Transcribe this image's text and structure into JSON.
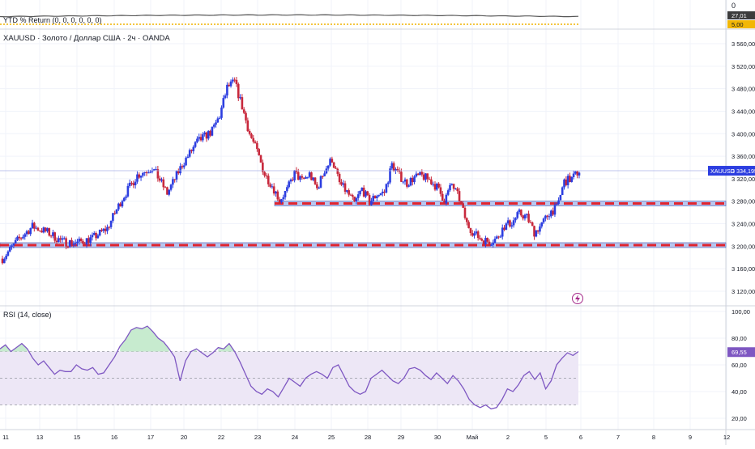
{
  "ytd_pane": {
    "title": "YTD % Return (0, 0, 0, 0, 0, 0)",
    "axis_top": "0",
    "value_badge": "27,01",
    "value_badge_2": "5,00",
    "line_color": "#555555",
    "dotted_color": "#f0b400"
  },
  "main_pane": {
    "title": "XAUUSD · Золото / Доллар США · 2ч · OANDA",
    "price_badge_symbol": "XAUUSD",
    "price_badge_value": "3 334,195",
    "bull_color": "#2c3ee0",
    "bear_color": "#c8283c",
    "level_1": 3276,
    "level_2": 3202,
    "level_fill": "#b9c6ee",
    "level_dash": "#e0242f",
    "flash_icon": "lightning-icon"
  },
  "rsi_pane": {
    "title": "RSI (14, close)",
    "value_badge": "69,55",
    "line_color": "#7e57c2",
    "band_color": "#ede7f6",
    "overbought_fill": "#c7ebcf"
  },
  "chart_data": [
    {
      "type": "candlestick",
      "title": "XAUUSD · Золото / Доллар США · 2ч · OANDA",
      "ylim": [
        3100,
        3570
      ],
      "y_ticks": [
        "3 560,000",
        "3 520,000",
        "3 480,000",
        "3 440,000",
        "3 400,000",
        "3 360,000",
        "3 320,000",
        "3 280,000",
        "3 240,000",
        "3 200,000",
        "3 160,000",
        "3 120,000"
      ],
      "x_ticks": [
        "11",
        "13",
        "15",
        "16",
        "17",
        "20",
        "22",
        "23",
        "24",
        "25",
        "28",
        "29",
        "30",
        "Май",
        "2",
        "5",
        "6",
        "7",
        "8",
        "9",
        "12"
      ],
      "current_price": 3334.195,
      "close_path": [
        {
          "t": 0,
          "v": 3178
        },
        {
          "t": 4,
          "v": 3210
        },
        {
          "t": 8,
          "v": 3235
        },
        {
          "t": 12,
          "v": 3225
        },
        {
          "t": 16,
          "v": 3208
        },
        {
          "t": 20,
          "v": 3206
        },
        {
          "t": 24,
          "v": 3214
        },
        {
          "t": 28,
          "v": 3232
        },
        {
          "t": 32,
          "v": 3285
        },
        {
          "t": 36,
          "v": 3326
        },
        {
          "t": 40,
          "v": 3340
        },
        {
          "t": 42,
          "v": 3318
        },
        {
          "t": 44,
          "v": 3294
        },
        {
          "t": 48,
          "v": 3345
        },
        {
          "t": 52,
          "v": 3385
        },
        {
          "t": 56,
          "v": 3405
        },
        {
          "t": 58,
          "v": 3432
        },
        {
          "t": 60,
          "v": 3482
        },
        {
          "t": 62,
          "v": 3492
        },
        {
          "t": 64,
          "v": 3448
        },
        {
          "t": 66,
          "v": 3400
        },
        {
          "t": 68,
          "v": 3368
        },
        {
          "t": 70,
          "v": 3328
        },
        {
          "t": 72,
          "v": 3308
        },
        {
          "t": 74,
          "v": 3282
        },
        {
          "t": 76,
          "v": 3300
        },
        {
          "t": 78,
          "v": 3330
        },
        {
          "t": 80,
          "v": 3316
        },
        {
          "t": 82,
          "v": 3328
        },
        {
          "t": 84,
          "v": 3302
        },
        {
          "t": 86,
          "v": 3335
        },
        {
          "t": 88,
          "v": 3355
        },
        {
          "t": 90,
          "v": 3312
        },
        {
          "t": 92,
          "v": 3296
        },
        {
          "t": 94,
          "v": 3276
        },
        {
          "t": 96,
          "v": 3302
        },
        {
          "t": 98,
          "v": 3278
        },
        {
          "t": 100,
          "v": 3292
        },
        {
          "t": 102,
          "v": 3296
        },
        {
          "t": 104,
          "v": 3345
        },
        {
          "t": 106,
          "v": 3325
        },
        {
          "t": 108,
          "v": 3312
        },
        {
          "t": 110,
          "v": 3322
        },
        {
          "t": 112,
          "v": 3325
        },
        {
          "t": 114,
          "v": 3318
        },
        {
          "t": 116,
          "v": 3305
        },
        {
          "t": 118,
          "v": 3282
        },
        {
          "t": 120,
          "v": 3310
        },
        {
          "t": 122,
          "v": 3284
        },
        {
          "t": 124,
          "v": 3240
        },
        {
          "t": 126,
          "v": 3222
        },
        {
          "t": 128,
          "v": 3212
        },
        {
          "t": 130,
          "v": 3208
        },
        {
          "t": 132,
          "v": 3214
        },
        {
          "t": 134,
          "v": 3236
        },
        {
          "t": 136,
          "v": 3242
        },
        {
          "t": 138,
          "v": 3258
        },
        {
          "t": 140,
          "v": 3252
        },
        {
          "t": 142,
          "v": 3225
        },
        {
          "t": 144,
          "v": 3238
        },
        {
          "t": 146,
          "v": 3260
        },
        {
          "t": 148,
          "v": 3268
        },
        {
          "t": 150,
          "v": 3315
        },
        {
          "t": 152,
          "v": 3320
        },
        {
          "t": 154,
          "v": 3334
        }
      ]
    },
    {
      "type": "line",
      "title": "RSI (14, close)",
      "ylim": [
        15,
        102
      ],
      "y_ticks": [
        "100,00",
        "80,00",
        "60,00",
        "40,00",
        "20,00"
      ],
      "bands": {
        "upper": 70,
        "middle": 50,
        "lower": 30
      },
      "current_value": 69.55,
      "values": [
        72,
        75,
        70,
        73,
        76,
        72,
        65,
        60,
        63,
        58,
        53,
        56,
        55,
        55,
        60,
        57,
        56,
        58,
        53,
        54,
        60,
        66,
        74,
        79,
        86,
        88,
        87,
        89,
        85,
        80,
        77,
        72,
        66,
        48,
        63,
        70,
        72,
        69,
        66,
        69,
        73,
        72,
        76,
        70,
        62,
        53,
        44,
        40,
        38,
        42,
        40,
        36,
        43,
        50,
        47,
        44,
        50,
        53,
        55,
        53,
        50,
        58,
        60,
        52,
        44,
        40,
        38,
        40,
        50,
        53,
        56,
        52,
        48,
        46,
        50,
        57,
        58,
        56,
        52,
        49,
        54,
        50,
        46,
        52,
        48,
        42,
        34,
        30,
        28,
        30,
        27,
        28,
        34,
        42,
        40,
        45,
        52,
        55,
        49,
        54,
        42,
        48,
        60,
        65,
        69,
        67,
        70
      ]
    }
  ]
}
